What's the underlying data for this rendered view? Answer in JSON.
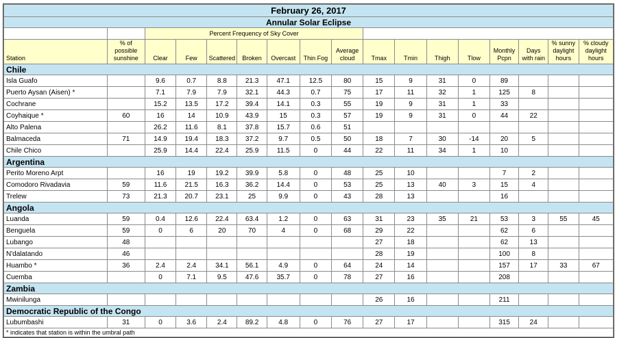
{
  "title": "February 26, 2017",
  "subtitle": "Annular Solar Eclipse",
  "sky_cover_group": "Percent Frequency of Sky Cover",
  "headers": {
    "station": "Station",
    "sunshine": "% of possible sunshine",
    "clear": "Clear",
    "few": "Few",
    "scattered": "Scattered",
    "broken": "Broken",
    "overcast": "Overcast",
    "thin_fog": "Thin Fog",
    "avg_cloud": "Average cloud",
    "tmax": "Tmax",
    "tmin": "Tmin",
    "thigh": "Thigh",
    "tlow": "Tlow",
    "pcpn": "Monthly Pcpn",
    "rain_days": "Days with rain",
    "sunny_hours": "% sunny daylight hours",
    "cloudy_hours": "% cloudy daylight hours"
  },
  "countries": [
    {
      "name": "Chile",
      "stations": [
        [
          "Isla Guafo",
          "",
          "9.6",
          "0.7",
          "8.8",
          "21.3",
          "47.1",
          "12.5",
          "80",
          "15",
          "9",
          "31",
          "0",
          "89",
          "",
          "",
          ""
        ],
        [
          "Puerto Aysan (Aisen) *",
          "",
          "7.1",
          "7.9",
          "7.9",
          "32.1",
          "44.3",
          "0.7",
          "75",
          "17",
          "11",
          "32",
          "1",
          "125",
          "8",
          "",
          ""
        ],
        [
          "Cochrane",
          "",
          "15.2",
          "13.5",
          "17.2",
          "39.4",
          "14.1",
          "0.3",
          "55",
          "19",
          "9",
          "31",
          "1",
          "33",
          "",
          "",
          ""
        ],
        [
          "Coyhaique *",
          "60",
          "16",
          "14",
          "10.9",
          "43.9",
          "15",
          "0.3",
          "57",
          "19",
          "9",
          "31",
          "0",
          "44",
          "22",
          "",
          ""
        ],
        [
          "Alto Palena",
          "",
          "26.2",
          "11.6",
          "8.1",
          "37.8",
          "15.7",
          "0.6",
          "51",
          "",
          "",
          "",
          "",
          "",
          "",
          "",
          ""
        ],
        [
          "Balmaceda",
          "71",
          "14.9",
          "19.4",
          "18.3",
          "37.2",
          "9.7",
          "0.5",
          "50",
          "18",
          "7",
          "30",
          "-14",
          "20",
          "5",
          "",
          ""
        ],
        [
          "Chile Chico",
          "",
          "25.9",
          "14.4",
          "22.4",
          "25.9",
          "11.5",
          "0",
          "44",
          "22",
          "11",
          "34",
          "1",
          "10",
          "",
          "",
          ""
        ]
      ]
    },
    {
      "name": "Argentina",
      "stations": [
        [
          "Perito Moreno Arpt",
          "",
          "16",
          "19",
          "19.2",
          "39.9",
          "5.8",
          "0",
          "48",
          "25",
          "10",
          "",
          "",
          "7",
          "2",
          "",
          ""
        ],
        [
          "Comodoro Rivadavia",
          "59",
          "11.6",
          "21.5",
          "16.3",
          "36.2",
          "14.4",
          "0",
          "53",
          "25",
          "13",
          "40",
          "3",
          "15",
          "4",
          "",
          ""
        ],
        [
          "Trelew",
          "73",
          "21.3",
          "20.7",
          "23.1",
          "25",
          "9.9",
          "0",
          "43",
          "28",
          "13",
          "",
          "",
          "16",
          "",
          "",
          ""
        ]
      ]
    },
    {
      "name": "Angola",
      "stations": [
        [
          "Luanda",
          "59",
          "0.4",
          "12.6",
          "22.4",
          "63.4",
          "1.2",
          "0",
          "63",
          "31",
          "23",
          "35",
          "21",
          "53",
          "3",
          "55",
          "45"
        ],
        [
          "Benguela",
          "59",
          "0",
          "6",
          "20",
          "70",
          "4",
          "0",
          "68",
          "29",
          "22",
          "",
          "",
          "62",
          "6",
          "",
          ""
        ],
        [
          "Lubango",
          "48",
          "",
          "",
          "",
          "",
          "",
          "",
          "",
          "27",
          "18",
          "",
          "",
          "62",
          "13",
          "",
          ""
        ],
        [
          "N'dalatando",
          "46",
          "",
          "",
          "",
          "",
          "",
          "",
          "",
          "28",
          "19",
          "",
          "",
          "100",
          "8",
          "",
          ""
        ],
        [
          "Huambo *",
          "36",
          "2.4",
          "2.4",
          "34.1",
          "56.1",
          "4.9",
          "0",
          "64",
          "24",
          "14",
          "",
          "",
          "157",
          "17",
          "33",
          "67"
        ],
        [
          "Cuemba",
          "",
          "0",
          "7.1",
          "9.5",
          "47.6",
          "35.7",
          "0",
          "78",
          "27",
          "16",
          "",
          "",
          "208",
          "",
          "",
          ""
        ]
      ]
    },
    {
      "name": "Zambia",
      "stations": [
        [
          "Mwinilunga",
          "",
          "",
          "",
          "",
          "",
          "",
          "",
          "",
          "26",
          "16",
          "",
          "",
          "211",
          "",
          "",
          ""
        ]
      ]
    },
    {
      "name": "Democratic Republic of the Congo",
      "stations": [
        [
          "Lubumbashi",
          "31",
          "0",
          "3.6",
          "2.4",
          "89.2",
          "4.8",
          "0",
          "76",
          "27",
          "17",
          "",
          "",
          "315",
          "24",
          "",
          ""
        ]
      ]
    }
  ],
  "footnote": "* indicates that station is within the umbral path"
}
